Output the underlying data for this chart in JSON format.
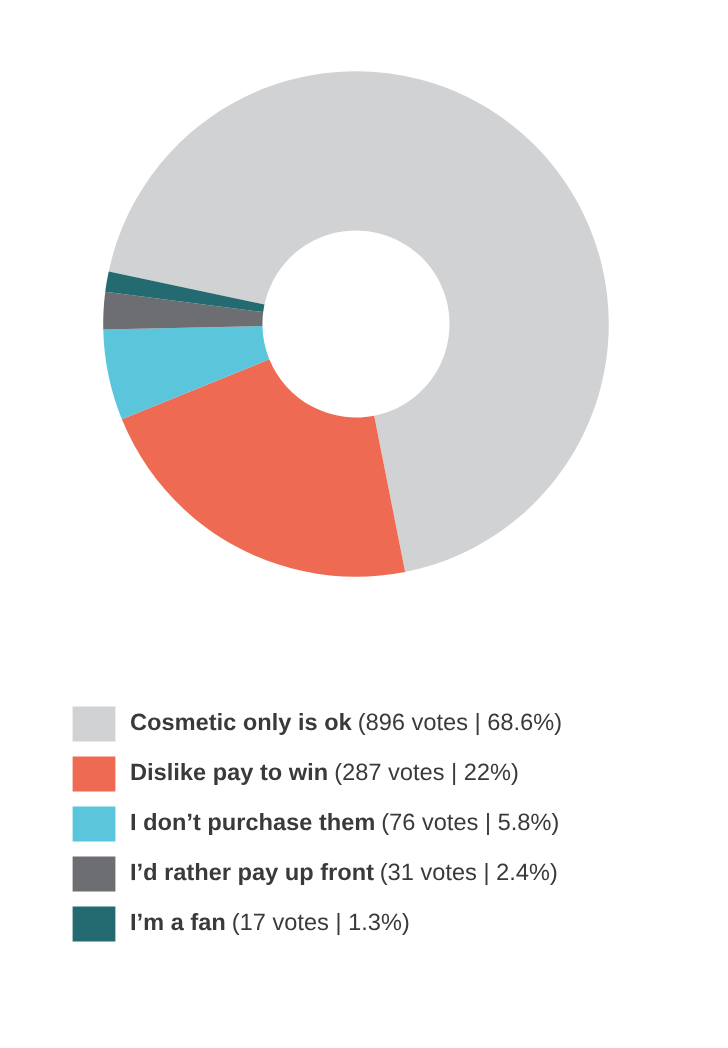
{
  "chart_data": {
    "type": "donut",
    "categories": [
      "Cosmetic only is ok",
      "Dislike pay to win",
      "I don’t purchase them",
      "I’d rather pay up front",
      "I’m a fan"
    ],
    "values": [
      896,
      287,
      76,
      31,
      17
    ],
    "value_labels": [
      "(896 votes | 68.6%)",
      "(287 votes | 22%)",
      "(76 votes | 5.8%)",
      "(31 votes | 2.4%)",
      "(17 votes | 1.3%)"
    ],
    "colors": [
      "#d1d2d4",
      "#ee6a52",
      "#5bc5dc",
      "#6d6e71",
      "#236a71"
    ],
    "legend": "bottom"
  }
}
